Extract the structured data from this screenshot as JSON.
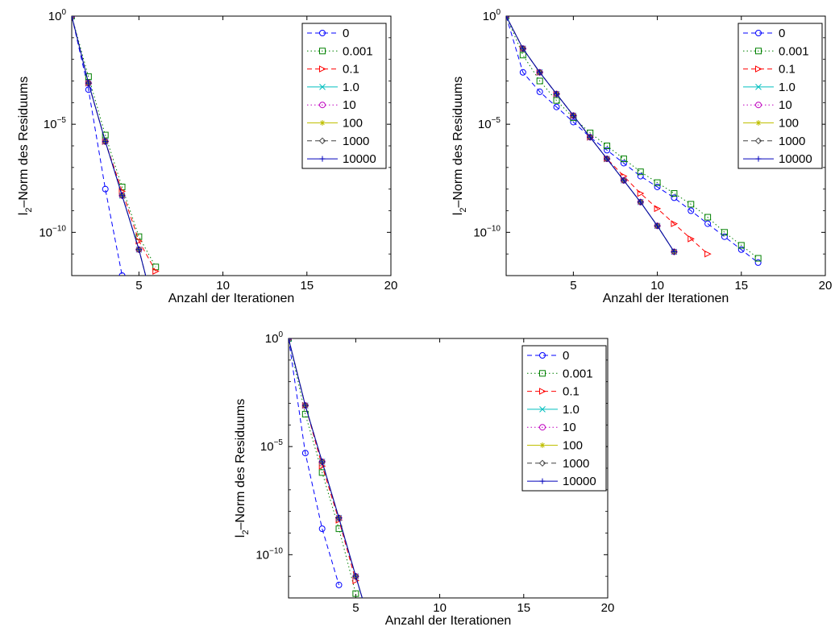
{
  "series_styles": [
    {
      "label": "0",
      "color": "#0000ff",
      "marker": "circle",
      "dash": "6,4"
    },
    {
      "label": "0.001",
      "color": "#008000",
      "marker": "square",
      "dash": "1.5,3"
    },
    {
      "label": "0.1",
      "color": "#ff0000",
      "marker": "triangle",
      "dash": "6,4"
    },
    {
      "label": "1.0",
      "color": "#00bfbf",
      "marker": "x",
      "dash": ""
    },
    {
      "label": "10",
      "color": "#bf00bf",
      "marker": "circle",
      "dash": "1.5,3"
    },
    {
      "label": "100",
      "color": "#bfbf00",
      "marker": "star",
      "dash": ""
    },
    {
      "label": "1000",
      "color": "#404040",
      "marker": "diamond",
      "dash": "6,4"
    },
    {
      "label": "10000",
      "color": "#0000bb",
      "marker": "plus",
      "dash": ""
    }
  ],
  "chart_data": [
    {
      "type": "line",
      "xlabel": "Anzahl der Iterationen",
      "ylabel_main": "l",
      "ylabel_sub": "2",
      "ylabel_rest": "–Norm des Residuums",
      "x_ticks": [
        5,
        10,
        15,
        20
      ],
      "xlim": [
        1,
        20
      ],
      "y_scale": "log",
      "y_ticks": [
        0,
        -5,
        -10
      ],
      "y_tick_base": "10",
      "ylim_exponent": [
        -12,
        0
      ],
      "legend_position": "top-right",
      "series": [
        {
          "x": [
            1,
            2,
            3,
            4,
            5
          ],
          "log10_y": [
            0,
            -3.4,
            -8,
            -12,
            -16
          ]
        },
        {
          "x": [
            1,
            2,
            3,
            4,
            5,
            6
          ],
          "log10_y": [
            0,
            -2.8,
            -5.5,
            -7.9,
            -10.2,
            -11.6
          ]
        },
        {
          "x": [
            1,
            2,
            3,
            4,
            5,
            6
          ],
          "log10_y": [
            0,
            -3.1,
            -5.8,
            -8.1,
            -10.4,
            -11.8
          ]
        },
        {
          "x": [
            1,
            2,
            3,
            4,
            5,
            6
          ],
          "log10_y": [
            0,
            -3.1,
            -5.8,
            -8.3,
            -10.8,
            -13.8
          ]
        },
        {
          "x": [
            1,
            2,
            3,
            4,
            5,
            6
          ],
          "log10_y": [
            0,
            -3.1,
            -5.8,
            -8.3,
            -10.8,
            -13.8
          ]
        },
        {
          "x": [
            1,
            2,
            3,
            4,
            5,
            6
          ],
          "log10_y": [
            0,
            -3.1,
            -5.8,
            -8.3,
            -10.8,
            -13.8
          ]
        },
        {
          "x": [
            1,
            2,
            3,
            4,
            5,
            6
          ],
          "log10_y": [
            0,
            -3.1,
            -5.8,
            -8.3,
            -10.8,
            -13.8
          ]
        },
        {
          "x": [
            1,
            2,
            3,
            4,
            5,
            6
          ],
          "log10_y": [
            0,
            -3.1,
            -5.8,
            -8.3,
            -10.8,
            -13.8
          ]
        }
      ]
    },
    {
      "type": "line",
      "xlabel": "Anzahl der Iterationen",
      "ylabel_main": "l",
      "ylabel_sub": "2",
      "ylabel_rest": "–Norm des Residuums",
      "x_ticks": [
        5,
        10,
        15,
        20
      ],
      "xlim": [
        1,
        20
      ],
      "y_scale": "log",
      "y_ticks": [
        0,
        -5,
        -10
      ],
      "y_tick_base": "10",
      "ylim_exponent": [
        -12,
        0
      ],
      "legend_position": "top-right",
      "series": [
        {
          "x": [
            1,
            2,
            3,
            4,
            5,
            6,
            7,
            8,
            9,
            10,
            11,
            12,
            13,
            14,
            15,
            16
          ],
          "log10_y": [
            0,
            -2.6,
            -3.5,
            -4.2,
            -4.9,
            -5.6,
            -6.2,
            -6.8,
            -7.4,
            -7.9,
            -8.4,
            -9,
            -9.6,
            -10.2,
            -10.8,
            -11.4
          ]
        },
        {
          "x": [
            1,
            2,
            3,
            4,
            5,
            6,
            7,
            8,
            9,
            10,
            11,
            12,
            13,
            14,
            15,
            16
          ],
          "log10_y": [
            0,
            -1.8,
            -3,
            -3.9,
            -4.7,
            -5.4,
            -6,
            -6.6,
            -7.2,
            -7.7,
            -8.2,
            -8.7,
            -9.3,
            -10,
            -10.6,
            -11.2
          ]
        },
        {
          "x": [
            1,
            2,
            3,
            4,
            5,
            6,
            7,
            8,
            9,
            10,
            11,
            12,
            13
          ],
          "log10_y": [
            0,
            -1.5,
            -2.6,
            -3.6,
            -4.6,
            -5.6,
            -6.6,
            -7.4,
            -8.2,
            -8.9,
            -9.6,
            -10.3,
            -11
          ]
        },
        {
          "x": [
            1,
            2,
            3,
            4,
            5,
            6,
            7,
            8,
            9,
            10,
            11
          ],
          "log10_y": [
            0,
            -1.5,
            -2.6,
            -3.6,
            -4.6,
            -5.6,
            -6.6,
            -7.6,
            -8.6,
            -9.7,
            -10.9
          ]
        },
        {
          "x": [
            1,
            2,
            3,
            4,
            5,
            6,
            7,
            8,
            9,
            10,
            11
          ],
          "log10_y": [
            0,
            -1.5,
            -2.6,
            -3.6,
            -4.6,
            -5.6,
            -6.6,
            -7.6,
            -8.6,
            -9.7,
            -10.9
          ]
        },
        {
          "x": [
            1,
            2,
            3,
            4,
            5,
            6,
            7,
            8,
            9,
            10,
            11
          ],
          "log10_y": [
            0,
            -1.5,
            -2.6,
            -3.6,
            -4.6,
            -5.6,
            -6.6,
            -7.6,
            -8.6,
            -9.7,
            -10.9
          ]
        },
        {
          "x": [
            1,
            2,
            3,
            4,
            5,
            6,
            7,
            8,
            9,
            10,
            11
          ],
          "log10_y": [
            0,
            -1.5,
            -2.6,
            -3.6,
            -4.6,
            -5.6,
            -6.6,
            -7.6,
            -8.6,
            -9.7,
            -10.9
          ]
        },
        {
          "x": [
            1,
            2,
            3,
            4,
            5,
            6,
            7,
            8,
            9,
            10,
            11
          ],
          "log10_y": [
            0,
            -1.5,
            -2.6,
            -3.6,
            -4.6,
            -5.6,
            -6.6,
            -7.6,
            -8.6,
            -9.7,
            -10.9
          ]
        }
      ]
    },
    {
      "type": "line",
      "xlabel": "Anzahl der Iterationen",
      "ylabel_main": "l",
      "ylabel_sub": "2",
      "ylabel_rest": "–Norm des Residuums",
      "x_ticks": [
        5,
        10,
        15,
        20
      ],
      "xlim": [
        1,
        20
      ],
      "y_scale": "log",
      "y_ticks": [
        0,
        -5,
        -10
      ],
      "y_tick_base": "10",
      "ylim_exponent": [
        -12,
        0
      ],
      "legend_position": "top-right",
      "series": [
        {
          "x": [
            1,
            2,
            3,
            4
          ],
          "log10_y": [
            0,
            -5.3,
            -8.8,
            -11.4
          ]
        },
        {
          "x": [
            1,
            2,
            3,
            4,
            5
          ],
          "log10_y": [
            0,
            -3.5,
            -6.2,
            -8.8,
            -11.8
          ]
        },
        {
          "x": [
            1,
            2,
            3,
            4,
            5
          ],
          "log10_y": [
            0,
            -3.1,
            -5.9,
            -8.4,
            -11.2
          ]
        },
        {
          "x": [
            1,
            2,
            3,
            4,
            5,
            6
          ],
          "log10_y": [
            0,
            -3.1,
            -5.7,
            -8.3,
            -11,
            -13.6
          ]
        },
        {
          "x": [
            1,
            2,
            3,
            4,
            5,
            6
          ],
          "log10_y": [
            0,
            -3.1,
            -5.7,
            -8.3,
            -11,
            -13.6
          ]
        },
        {
          "x": [
            1,
            2,
            3,
            4,
            5,
            6
          ],
          "log10_y": [
            0,
            -3.1,
            -5.7,
            -8.3,
            -11,
            -13.6
          ]
        },
        {
          "x": [
            1,
            2,
            3,
            4,
            5,
            6
          ],
          "log10_y": [
            0,
            -3.1,
            -5.7,
            -8.3,
            -11,
            -13.6
          ]
        },
        {
          "x": [
            1,
            2,
            3,
            4,
            5,
            6
          ],
          "log10_y": [
            0,
            -3.1,
            -5.7,
            -8.3,
            -11,
            -13.6
          ]
        }
      ]
    }
  ]
}
